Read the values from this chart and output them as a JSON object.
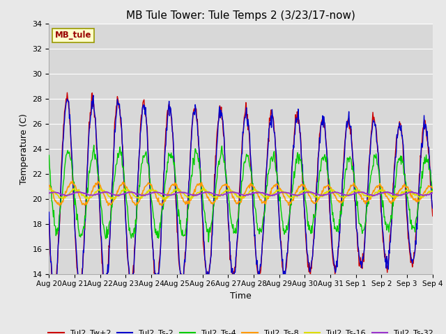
{
  "title": "MB Tule Tower: Tule Temps 2 (3/23/17-now)",
  "xlabel": "Time",
  "ylabel": "Temperature (C)",
  "ylim": [
    14,
    34
  ],
  "yticks": [
    14,
    16,
    18,
    20,
    22,
    24,
    26,
    28,
    30,
    32,
    34
  ],
  "background_color": "#e8e8e8",
  "plot_bg_color": "#d8d8d8",
  "grid_color": "#ffffff",
  "legend_label": "MB_tule",
  "series_colors": {
    "Tul2_Tw+2": "#cc0000",
    "Tul2_Ts-2": "#0000cc",
    "Tul2_Ts-4": "#00cc00",
    "Tul2_Ts-8": "#ff9900",
    "Tul2_Ts-16": "#dddd00",
    "Tul2_Ts-32": "#9933cc"
  },
  "x_tick_labels": [
    "Aug 20",
    "Aug 21",
    "Aug 22",
    "Aug 23",
    "Aug 24",
    "Aug 25",
    "Aug 26",
    "Aug 27",
    "Aug 28",
    "Aug 29",
    "Aug 30",
    "Aug 31",
    "Sep 1",
    "Sep 2",
    "Sep 3",
    "Sep 4"
  ],
  "num_days": 15,
  "pts_per_day": 48
}
